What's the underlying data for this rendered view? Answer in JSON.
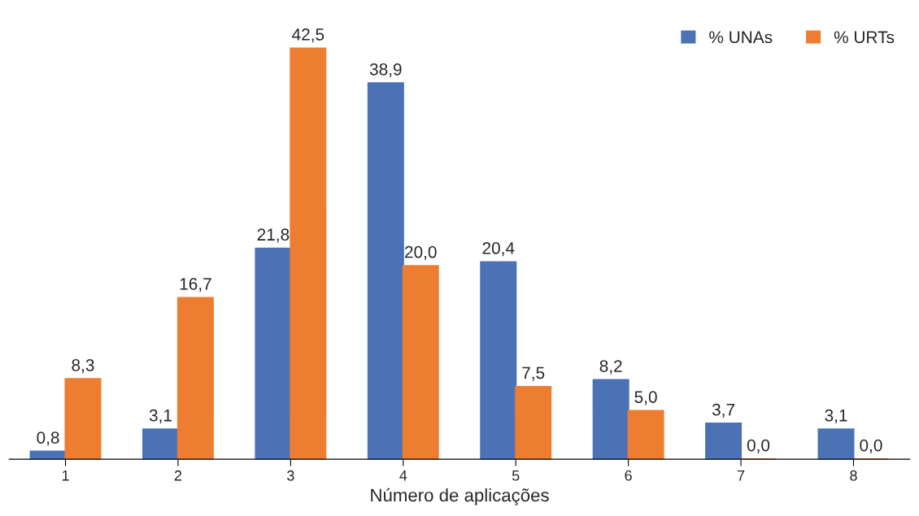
{
  "chart_data": {
    "type": "bar",
    "xlabel": "Número de aplicações",
    "categories": [
      "1",
      "2",
      "3",
      "4",
      "5",
      "6",
      "7",
      "8"
    ],
    "series": [
      {
        "name": "% UNAs",
        "color": "#4a72b5",
        "values": [
          0.8,
          3.1,
          21.8,
          38.9,
          20.4,
          8.2,
          3.7,
          3.1
        ],
        "value_labels": [
          "0,8",
          "3,1",
          "21,8",
          "38,9",
          "20,4",
          "8,2",
          "3,7",
          "3,1"
        ]
      },
      {
        "name": "% URTs",
        "color": "#ed7d31",
        "values": [
          8.3,
          16.7,
          42.5,
          20.0,
          7.5,
          5.0,
          0.0,
          0.0
        ],
        "value_labels": [
          "8,3",
          "16,7",
          "42,5",
          "20,0",
          "7,5",
          "5,0",
          "0,0",
          "0,0"
        ]
      }
    ],
    "legend": "top right",
    "grid": false
  }
}
